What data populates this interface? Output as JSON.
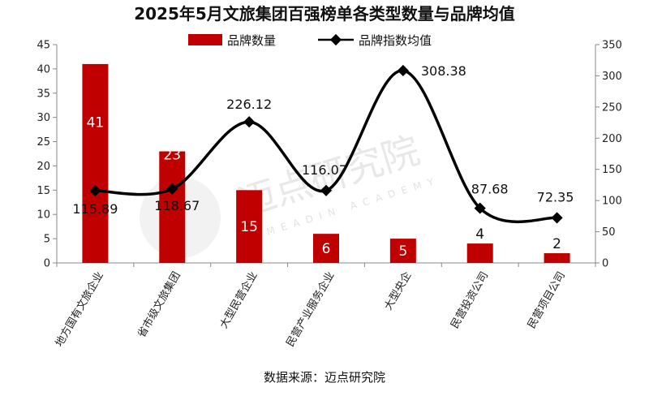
{
  "chart_data": {
    "type": "bar",
    "title": "2025年5月文旅集团百强榜单各类型数量与品牌均值",
    "categories": [
      "地方国有文旅企业",
      "省市级文旅集团",
      "大型民营企业",
      "民营产业服务企业",
      "大型央企",
      "民营投资公司",
      "民营项目公司"
    ],
    "series": [
      {
        "name": "品牌数量",
        "type": "bar",
        "axis": "left",
        "color": "#c00000",
        "values": [
          41,
          23,
          15,
          6,
          5,
          4,
          2
        ]
      },
      {
        "name": "品牌指数均值",
        "type": "line",
        "axis": "right",
        "color": "#000000",
        "values": [
          115.89,
          118.67,
          226.12,
          116.07,
          308.38,
          87.68,
          72.35
        ]
      }
    ],
    "ylim_left": [
      0,
      45
    ],
    "yticks_left": [
      0,
      5,
      10,
      15,
      20,
      25,
      30,
      35,
      40,
      45
    ],
    "ylim_right": [
      0,
      350
    ],
    "yticks_right": [
      0,
      50,
      100,
      150,
      200,
      250,
      300,
      350
    ],
    "bar_labels": [
      "41",
      "23",
      "15",
      "6",
      "5",
      "4",
      "2"
    ],
    "line_labels": [
      "115.89",
      "118.67",
      "226.12",
      "116.07",
      "308.38",
      "87.68",
      "72.35"
    ],
    "legend_position": "top-center",
    "grid": false
  },
  "watermark": {
    "text_cn": "迈点研究院",
    "text_en": "MEADIN ACADEMY"
  },
  "source": "数据来源：迈点研究院"
}
